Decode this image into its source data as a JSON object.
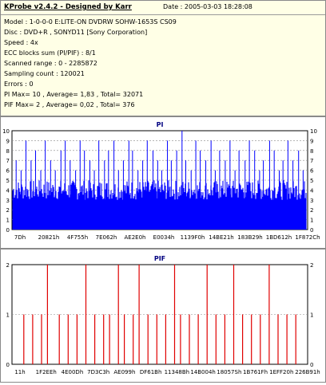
{
  "header": {
    "title": "KProbe v2.4.2 - Designed by Karr",
    "date": "Date : 2005-03-03 18:28:08",
    "lines": [
      "Model : 1-0-0-0 E:LITE-ON DVDRW SOHW-1653S CS09",
      "Disc : DVD+R , SONYD11 [Sony Corporation]",
      "Speed : 4x",
      "ECC blocks sum (PI/PIF) : 8/1",
      "Scanned range : 0 - 2285872",
      "Sampling count : 120021",
      "Errors : 0",
      "PI Max= 10 , Average= 1,83 , Total= 32071",
      "PIF Max= 2 , Average= 0,02 , Total= 376"
    ]
  },
  "chart_data": [
    {
      "type": "bar",
      "title": "PI",
      "color": "#0000ff",
      "ylim": [
        0,
        10
      ],
      "yticks": [
        0,
        1,
        2,
        3,
        4,
        5,
        6,
        7,
        8,
        9,
        10
      ],
      "grid": true,
      "x_tick_labels": [
        "7Dh",
        "20821h",
        "4F755h",
        "7E062h",
        "AE2E0h",
        "E0034h",
        "1139F0h",
        "14BE21h",
        "183B29h",
        "1BD612h",
        "1F872Ch"
      ],
      "baseline_range": [
        3,
        5
      ],
      "spike_values": [
        7,
        6,
        9,
        7,
        8,
        6,
        9,
        7,
        6,
        8,
        9,
        7,
        6,
        9,
        8,
        7,
        6,
        9,
        7,
        8,
        9,
        6,
        7,
        9,
        8,
        6,
        7,
        9,
        8,
        7,
        6,
        9,
        7,
        8,
        10,
        7,
        6,
        9,
        8,
        7,
        9,
        6,
        8,
        7,
        9,
        6,
        8,
        7,
        9,
        8,
        6,
        7,
        9,
        8,
        6,
        7,
        9,
        7,
        8,
        6
      ]
    },
    {
      "type": "bar",
      "title": "PIF",
      "color": "#e00000",
      "ylim": [
        0,
        2
      ],
      "yticks": [
        0,
        1,
        2
      ],
      "grid": true,
      "x_tick_labels": [
        "11h",
        "1F2EEh",
        "4E00Dh",
        "7D3C3h",
        "AE099h",
        "DF61Bh",
        "11348Bh",
        "14B004h",
        "18057Sh",
        "1B761Fh",
        "1EFF20h",
        "226B91h"
      ],
      "spike_positions": [
        0.04,
        0.07,
        0.1,
        0.12,
        0.16,
        0.19,
        0.22,
        0.25,
        0.28,
        0.31,
        0.33,
        0.36,
        0.38,
        0.41,
        0.43,
        0.46,
        0.49,
        0.52,
        0.55,
        0.57,
        0.6,
        0.63,
        0.66,
        0.69,
        0.72,
        0.75,
        0.78,
        0.81,
        0.84,
        0.87,
        0.9,
        0.93,
        0.96
      ],
      "spike_values": [
        1,
        1,
        1,
        2,
        1,
        1,
        1,
        2,
        1,
        1,
        1,
        2,
        1,
        1,
        2,
        1,
        1,
        1,
        2,
        1,
        1,
        1,
        2,
        1,
        1,
        2,
        1,
        1,
        1,
        2,
        1,
        1,
        1
      ]
    }
  ]
}
